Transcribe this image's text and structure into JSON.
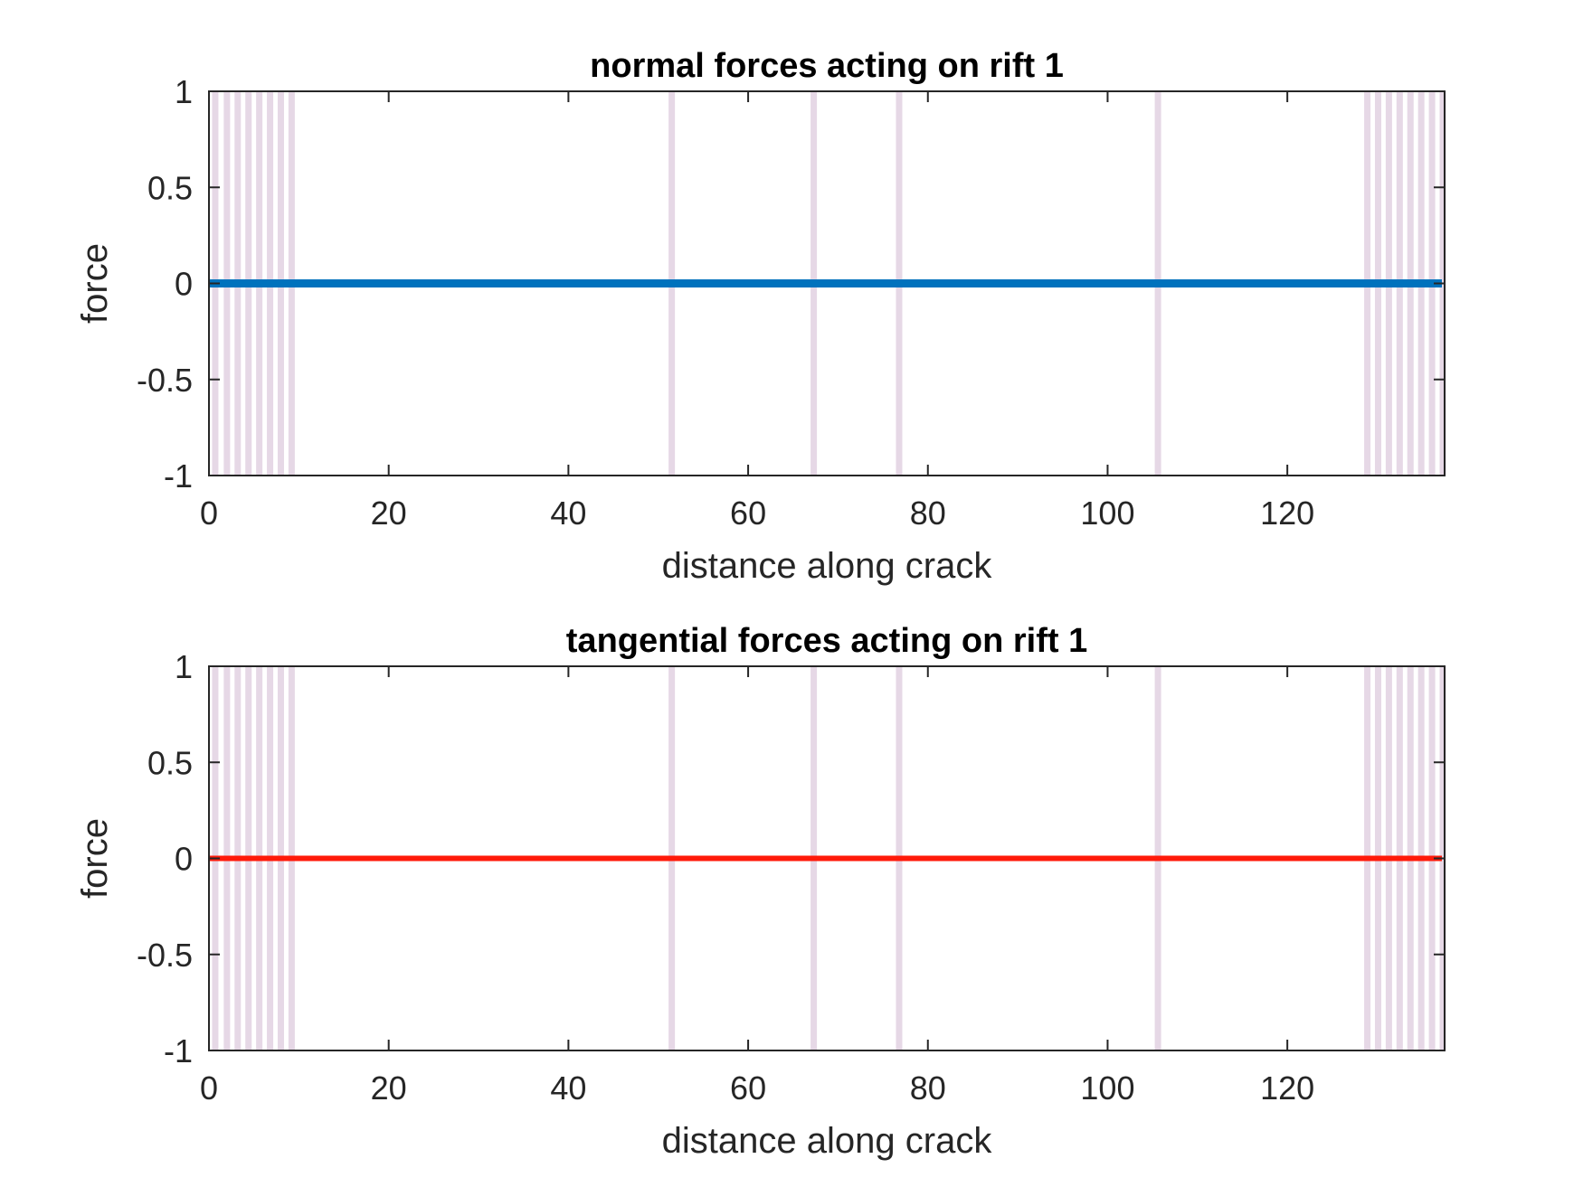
{
  "colors": {
    "background": "#ffffff",
    "axes_border": "#262626",
    "shade": "#e6d8e6",
    "series_normal": "#0072bd",
    "series_tangential": "#ff1a0a"
  },
  "chart_data": [
    {
      "type": "line",
      "title": "normal forces acting on rift 1",
      "xlabel": "distance along crack",
      "ylabel": "force",
      "xlim": [
        0,
        137.5
      ],
      "ylim": [
        -1,
        1
      ],
      "xticks": [
        0,
        20,
        40,
        60,
        80,
        100,
        120
      ],
      "yticks": [
        -1,
        -0.5,
        0,
        0.5,
        1
      ],
      "xtick_labels": [
        "0",
        "20",
        "40",
        "60",
        "80",
        "100",
        "120"
      ],
      "ytick_labels": [
        "-1",
        "-0.5",
        "0",
        "0.5",
        "1"
      ],
      "grid": false,
      "legend": "none",
      "shaded_x": [
        0.7,
        2.0,
        3.2,
        4.4,
        5.6,
        6.8,
        8.0,
        9.2,
        51.5,
        67.3,
        76.8,
        105.6,
        128.9,
        130.1,
        131.3,
        132.5,
        133.7,
        134.9,
        136.1,
        137.3
      ],
      "series": [
        {
          "color": "#0072bd",
          "x": [
            0,
            137.2
          ],
          "y": [
            0,
            0
          ],
          "stroke": "thick"
        }
      ]
    },
    {
      "type": "line",
      "title": "tangential forces acting on rift 1",
      "xlabel": "distance along crack",
      "ylabel": "force",
      "xlim": [
        0,
        137.5
      ],
      "ylim": [
        -1,
        1
      ],
      "xticks": [
        0,
        20,
        40,
        60,
        80,
        100,
        120
      ],
      "yticks": [
        -1,
        -0.5,
        0,
        0.5,
        1
      ],
      "xtick_labels": [
        "0",
        "20",
        "40",
        "60",
        "80",
        "100",
        "120"
      ],
      "ytick_labels": [
        "-1",
        "-0.5",
        "0",
        "0.5",
        "1"
      ],
      "grid": false,
      "legend": "none",
      "shaded_x": [
        0.7,
        2.0,
        3.2,
        4.4,
        5.6,
        6.8,
        8.0,
        9.2,
        51.5,
        67.3,
        76.8,
        105.6,
        128.9,
        130.1,
        131.3,
        132.5,
        133.7,
        134.9,
        136.1,
        137.3
      ],
      "series": [
        {
          "color": "#ff1a0a",
          "x": [
            0,
            137.2
          ],
          "y": [
            0,
            0
          ],
          "stroke": "medium"
        }
      ]
    }
  ]
}
